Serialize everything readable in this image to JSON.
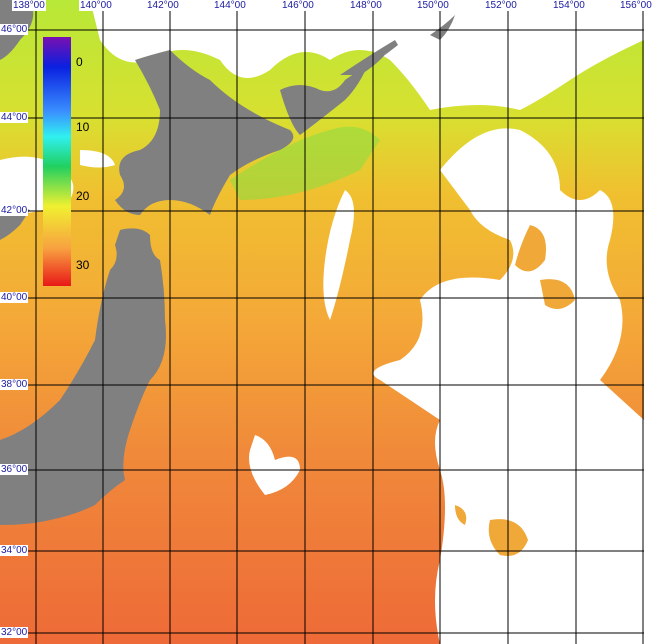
{
  "map": {
    "longitude_labels": [
      "138°00",
      "140°00",
      "142°00",
      "144°00",
      "146°00",
      "148°00",
      "150°00",
      "152°00",
      "154°00",
      "156°00"
    ],
    "latitude_labels": [
      "46°00",
      "44°00",
      "42°00",
      "40°00",
      "38°00",
      "36°00",
      "34°00",
      "32°00"
    ],
    "colorbar": {
      "labels": [
        "0",
        "10",
        "20",
        "30"
      ],
      "colors": [
        "#7a10b0",
        "#0a20e0",
        "#3a90ff",
        "#30f0f0",
        "#20d060",
        "#f0f030",
        "#f8a040",
        "#e81818"
      ]
    },
    "land_color": "#808080",
    "cloud_color": "#ffffff"
  }
}
